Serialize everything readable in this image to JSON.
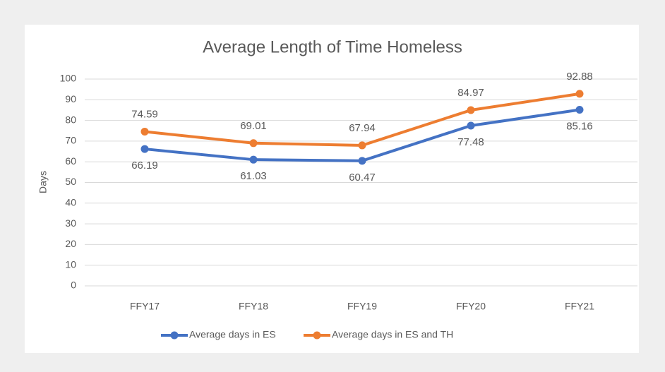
{
  "chart_data": {
    "type": "line",
    "title": "Average Length of Time Homeless",
    "ylabel": "Days",
    "categories": [
      "FFY17",
      "FFY18",
      "FFY19",
      "FFY20",
      "FFY21"
    ],
    "series": [
      {
        "name": "Average days in ES",
        "color": "#4472c4",
        "values": [
          66.19,
          61.03,
          60.47,
          77.48,
          85.16
        ]
      },
      {
        "name": "Average days in ES and TH",
        "color": "#ed7d31",
        "values": [
          74.59,
          69.01,
          67.94,
          84.97,
          92.88
        ]
      }
    ],
    "ylim": [
      0,
      100
    ],
    "yticks": [
      0,
      10,
      20,
      30,
      40,
      50,
      60,
      70,
      80,
      90,
      100
    ],
    "grid": true,
    "legend": "bottom"
  }
}
